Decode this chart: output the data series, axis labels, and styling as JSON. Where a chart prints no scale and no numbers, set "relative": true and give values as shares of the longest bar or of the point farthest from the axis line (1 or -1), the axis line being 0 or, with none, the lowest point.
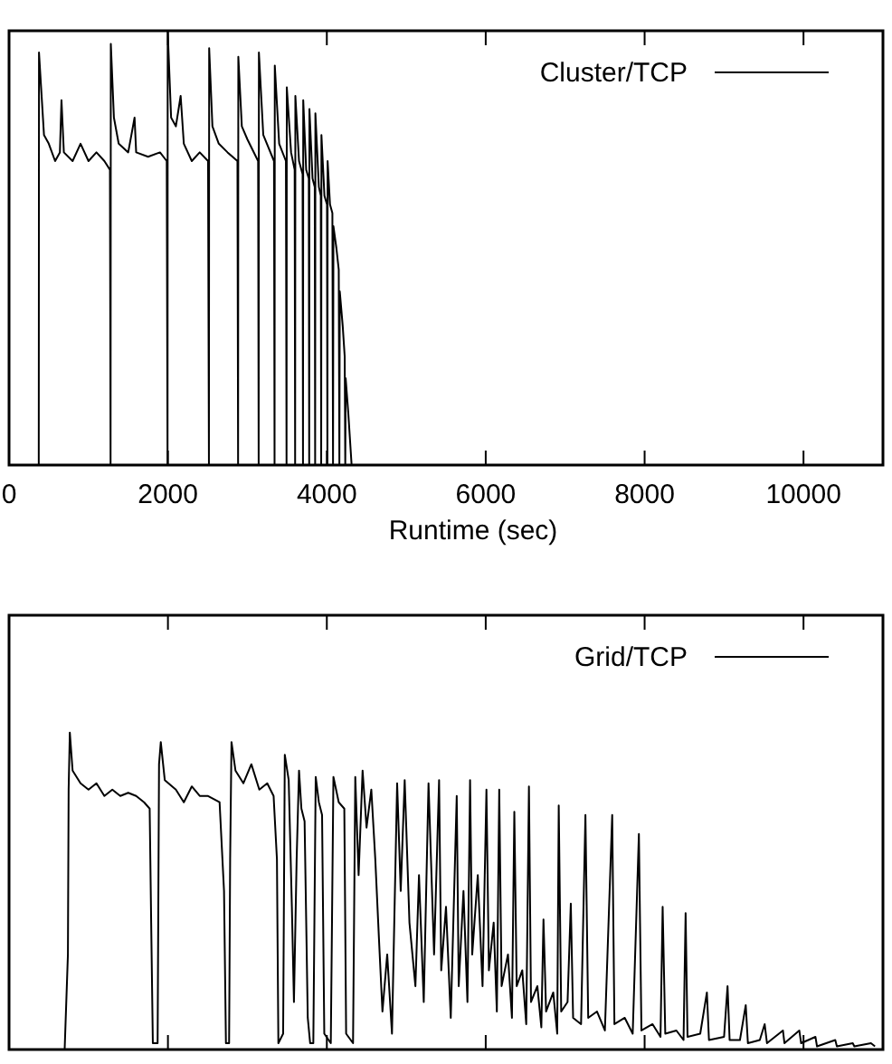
{
  "chart_data": [
    {
      "type": "line",
      "relative": true,
      "xlabel": "Runtime (sec)",
      "xlim": [
        0,
        11000
      ],
      "xticks": [
        0,
        2000,
        4000,
        6000,
        8000,
        10000
      ],
      "tick_labels": "x",
      "legend": "top right",
      "series": [
        {
          "name": "Cluster/TCP",
          "color": "#000000",
          "x": [
            374,
            377,
            400,
            440,
            500,
            580,
            640,
            660,
            690,
            800,
            900,
            1000,
            1100,
            1200,
            1270,
            1278,
            1281,
            1320,
            1380,
            1500,
            1580,
            1600,
            1750,
            1900,
            1985,
            1995,
            1997,
            2040,
            2100,
            2160,
            2200,
            2300,
            2400,
            2505,
            2516,
            2519,
            2560,
            2640,
            2750,
            2875,
            2883,
            2886,
            2930,
            3000,
            3135,
            3142,
            3145,
            3200,
            3335,
            3342,
            3345,
            3400,
            3485,
            3493,
            3496,
            3550,
            3595,
            3601,
            3604,
            3650,
            3695,
            3700,
            3703,
            3740,
            3773,
            3778,
            3781,
            3820,
            3848,
            3853,
            3856,
            3900,
            3924,
            3929,
            3932,
            3970,
            4002,
            4007,
            4010,
            4040,
            4070,
            4078,
            4083,
            4120,
            4150,
            4158,
            4163,
            4200,
            4225,
            4232,
            4237,
            4270,
            4312
          ],
          "values": [
            0,
            0.95,
            0.88,
            0.76,
            0.74,
            0.7,
            0.72,
            0.84,
            0.72,
            0.7,
            0.74,
            0.7,
            0.72,
            0.7,
            0.68,
            0,
            0.97,
            0.8,
            0.74,
            0.72,
            0.8,
            0.72,
            0.71,
            0.72,
            0.7,
            0,
            1.0,
            0.8,
            0.78,
            0.85,
            0.74,
            0.7,
            0.72,
            0.7,
            0,
            0.96,
            0.78,
            0.74,
            0.72,
            0.7,
            0,
            0.94,
            0.78,
            0.75,
            0.7,
            0,
            0.95,
            0.76,
            0.7,
            0,
            0.92,
            0.74,
            0.7,
            0,
            0.87,
            0.72,
            0.68,
            0,
            0.85,
            0.7,
            0.67,
            0,
            0.84,
            0.68,
            0.66,
            0,
            0.82,
            0.66,
            0.64,
            0,
            0.81,
            0.64,
            0.62,
            0,
            0.76,
            0.62,
            0.6,
            0,
            0.7,
            0.6,
            0.58,
            0,
            0.55,
            0.5,
            0.45,
            0,
            0.4,
            0.32,
            0.25,
            0,
            0.2,
            0.12,
            0
          ]
        }
      ]
    },
    {
      "type": "line",
      "relative": true,
      "xlim": [
        0,
        11000
      ],
      "xticks": [
        0,
        2000,
        4000,
        6000,
        8000,
        10000
      ],
      "tick_labels": false,
      "legend": "top right",
      "series": [
        {
          "name": "Grid/TCP",
          "color": "#000000",
          "x": [
            700,
            741,
            750,
            765,
            800,
            900,
            1000,
            1100,
            1200,
            1300,
            1400,
            1500,
            1600,
            1700,
            1770,
            1789,
            1810,
            1870,
            1888,
            1910,
            1960,
            2100,
            2200,
            2300,
            2400,
            2500,
            2650,
            2706,
            2730,
            2770,
            2783,
            2800,
            2850,
            2950,
            3050,
            3150,
            3250,
            3330,
            3372,
            3390,
            3450,
            3471,
            3520,
            3560,
            3586,
            3620,
            3650,
            3680,
            3720,
            3760,
            3790,
            3830,
            3860,
            3900,
            3940,
            3968,
            4050,
            4083,
            4150,
            4220,
            4243,
            4330,
            4358,
            4400,
            4450,
            4500,
            4560,
            4610,
            4656,
            4700,
            4760,
            4820,
            4885,
            4930,
            4980,
            5040,
            5115,
            5160,
            5220,
            5280,
            5350,
            5413,
            5440,
            5500,
            5560,
            5635,
            5660,
            5720,
            5770,
            5803,
            5830,
            5900,
            5960,
            6009,
            6040,
            6100,
            6140,
            6170,
            6200,
            6280,
            6330,
            6360,
            6390,
            6460,
            6510,
            6544,
            6570,
            6650,
            6700,
            6727,
            6760,
            6850,
            6900,
            6919,
            6950,
            7030,
            7071,
            7100,
            7200,
            7255,
            7290,
            7400,
            7500,
            7592,
            7620,
            7750,
            7850,
            7928,
            7960,
            8100,
            8200,
            8227,
            8260,
            8400,
            8490,
            8516,
            8540,
            8700,
            8784,
            8810,
            9000,
            9044,
            9070,
            9200,
            9273,
            9300,
            9450,
            9511,
            9540,
            9741,
            9760,
            9947,
            9970,
            10150,
            10170,
            10400,
            10420,
            10620,
            10640,
            10849,
            10900
          ],
          "values": [
            0,
            0.3,
            0.82,
            1.0,
            0.88,
            0.84,
            0.82,
            0.84,
            0.8,
            0.82,
            0.8,
            0.81,
            0.8,
            0.78,
            0.76,
            0.4,
            0.02,
            0.02,
            0.9,
            0.97,
            0.85,
            0.82,
            0.78,
            0.83,
            0.8,
            0.8,
            0.78,
            0.5,
            0.02,
            0.02,
            0.6,
            0.97,
            0.88,
            0.84,
            0.9,
            0.82,
            0.84,
            0.8,
            0.6,
            0.02,
            0.05,
            0.93,
            0.85,
            0.45,
            0.15,
            0.6,
            0.88,
            0.76,
            0.72,
            0.1,
            0.02,
            0.02,
            0.86,
            0.78,
            0.74,
            0.05,
            0.02,
            0.86,
            0.78,
            0.76,
            0.05,
            0.02,
            0.86,
            0.55,
            0.88,
            0.7,
            0.82,
            0.6,
            0.35,
            0.12,
            0.3,
            0.05,
            0.84,
            0.5,
            0.85,
            0.4,
            0.2,
            0.55,
            0.15,
            0.84,
            0.3,
            0.85,
            0.25,
            0.45,
            0.1,
            0.8,
            0.2,
            0.5,
            0.15,
            0.85,
            0.3,
            0.55,
            0.2,
            0.82,
            0.25,
            0.4,
            0.12,
            0.82,
            0.2,
            0.3,
            0.1,
            0.75,
            0.2,
            0.25,
            0.08,
            0.83,
            0.15,
            0.2,
            0.07,
            0.41,
            0.12,
            0.18,
            0.05,
            0.77,
            0.12,
            0.15,
            0.46,
            0.1,
            0.08,
            0.74,
            0.1,
            0.12,
            0.06,
            0.74,
            0.08,
            0.1,
            0.05,
            0.68,
            0.06,
            0.08,
            0.04,
            0.45,
            0.05,
            0.06,
            0.03,
            0.43,
            0.04,
            0.05,
            0.18,
            0.03,
            0.04,
            0.2,
            0.03,
            0.03,
            0.14,
            0.02,
            0.03,
            0.08,
            0.02,
            0.06,
            0.02,
            0.06,
            0.02,
            0.04,
            0.01,
            0.03,
            0.01,
            0.02,
            0.01,
            0.02,
            0.01
          ]
        }
      ]
    }
  ]
}
